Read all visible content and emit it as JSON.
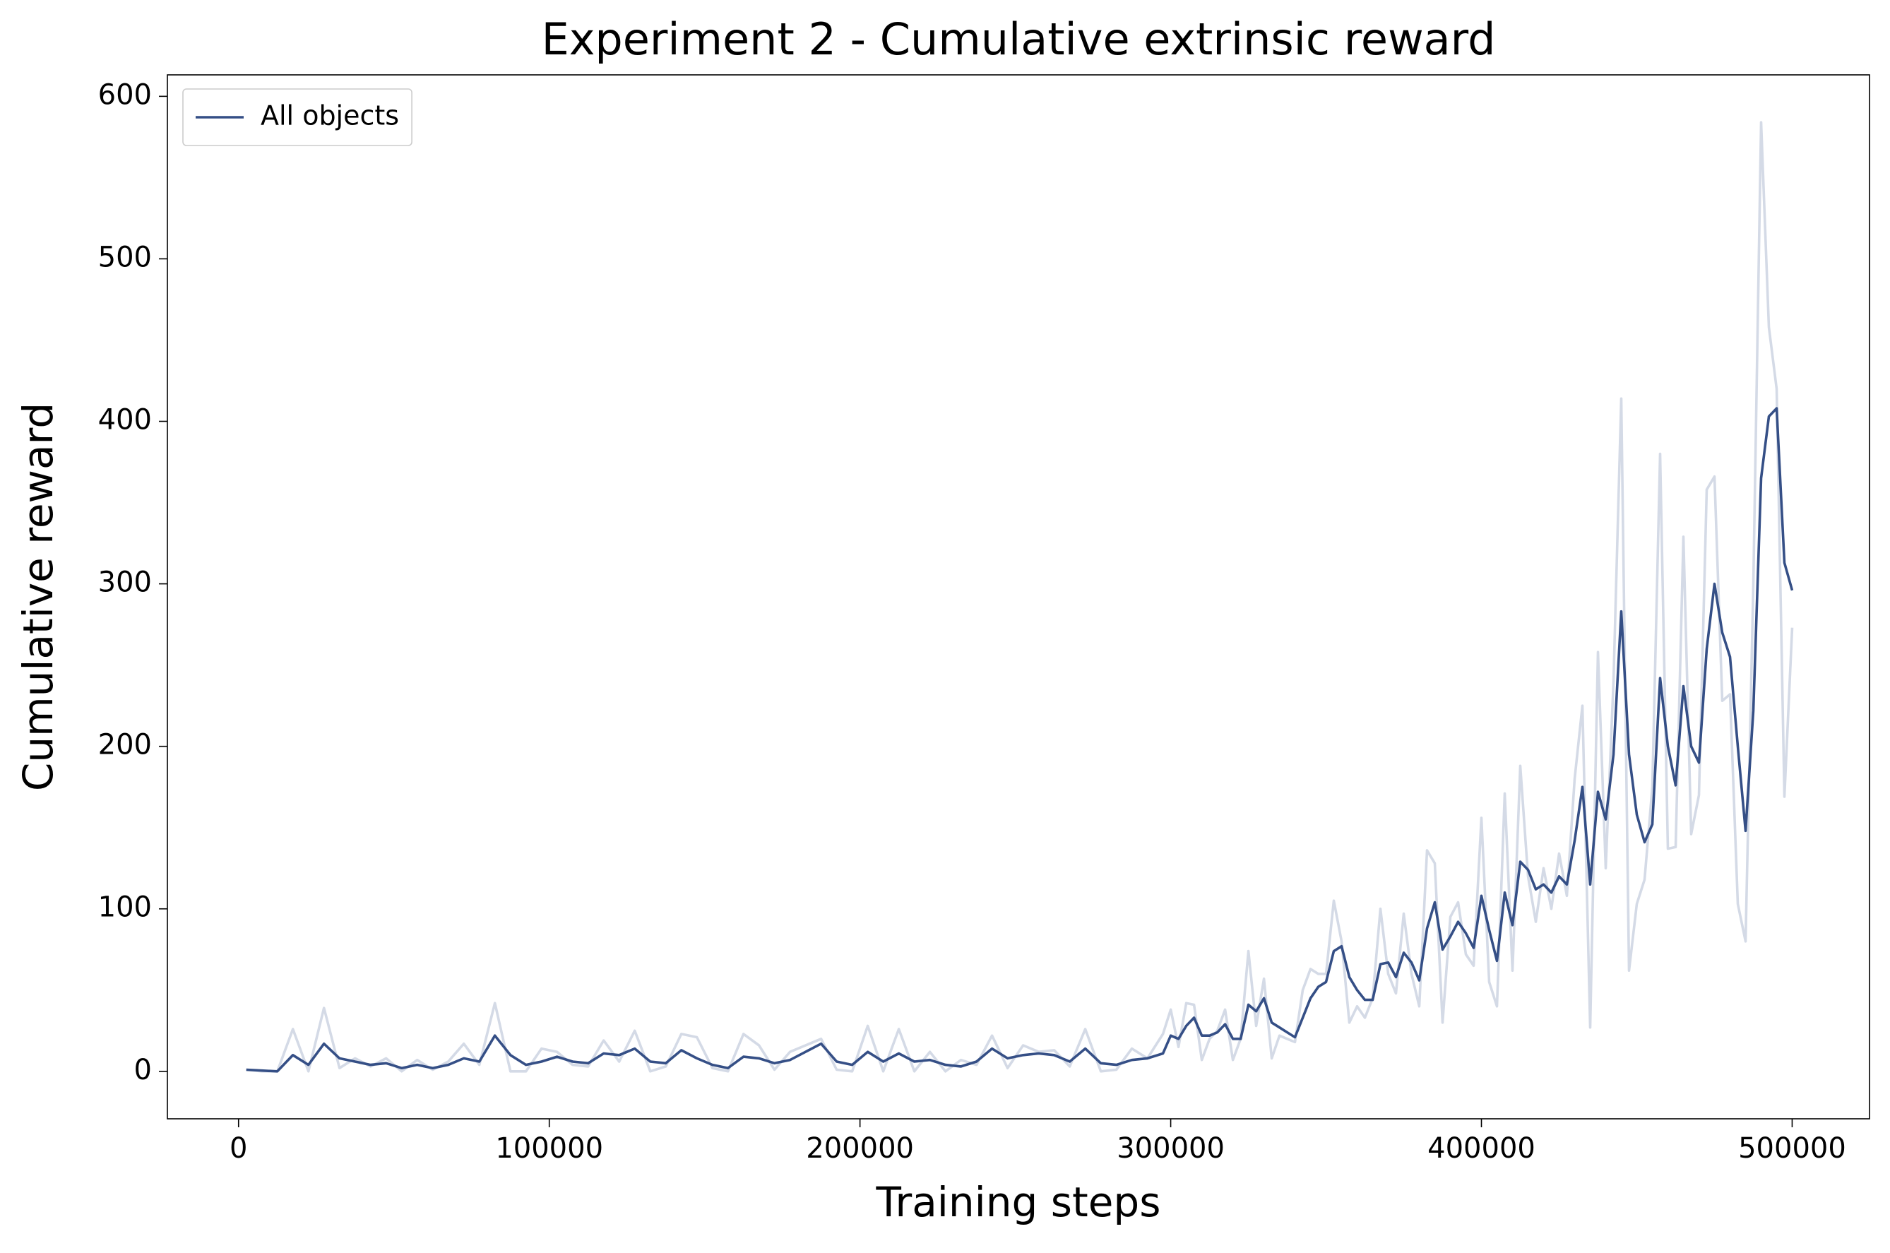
{
  "chart_data": {
    "type": "line",
    "title": "Experiment 2 - Cumulative extrinsic reward",
    "x_label": "Training steps",
    "y_label": "Cumulative reward",
    "legend": "upper left",
    "xlim": [
      -22900,
      524900
    ],
    "ylim": [
      -29.2,
      613.2
    ],
    "xticks": [
      0,
      100000,
      200000,
      300000,
      400000,
      500000
    ],
    "yticks": [
      0,
      100,
      200,
      300,
      400,
      500,
      600
    ],
    "x": [
      2500,
      7500,
      12500,
      17500,
      22500,
      27500,
      32500,
      37500,
      42500,
      47500,
      52500,
      57500,
      62500,
      67500,
      72500,
      77500,
      82500,
      87500,
      92500,
      97500,
      102500,
      107500,
      112500,
      117500,
      122500,
      127500,
      132500,
      137500,
      142500,
      147500,
      152500,
      157500,
      162500,
      167500,
      172500,
      177500,
      182500,
      187500,
      192500,
      197500,
      202500,
      207500,
      212500,
      217500,
      222500,
      227500,
      232500,
      237500,
      242500,
      247500,
      252500,
      257500,
      262500,
      267500,
      272500,
      277500,
      282500,
      287500,
      292500,
      297500,
      300000,
      302500,
      305000,
      307500,
      310000,
      312500,
      315000,
      317500,
      320000,
      322500,
      325000,
      327500,
      330000,
      332500,
      335000,
      337500,
      340000,
      342500,
      345000,
      347500,
      350000,
      352500,
      355000,
      357500,
      360000,
      362500,
      365000,
      367500,
      370000,
      372500,
      375000,
      377500,
      380000,
      382500,
      385000,
      387500,
      390000,
      392500,
      395000,
      397500,
      400000,
      402500,
      405000,
      407500,
      410000,
      412500,
      415000,
      417500,
      420000,
      422500,
      425000,
      427500,
      430000,
      432500,
      435000,
      437500,
      440000,
      442500,
      445000,
      447500,
      450000,
      452500,
      455000,
      457500,
      460000,
      462500,
      465000,
      467500,
      470000,
      472500,
      475000,
      477500,
      480000,
      482500,
      485000,
      487500,
      490000,
      492500,
      495000,
      497500,
      500000
    ],
    "series": [
      {
        "name": "All objects",
        "color": "#354f86",
        "values": [
          1,
          0.5,
          0,
          10,
          4,
          17,
          8,
          6,
          4,
          5,
          2,
          4,
          2,
          4,
          8,
          6,
          22,
          10,
          4,
          6,
          9,
          6,
          5,
          11,
          10,
          14,
          6,
          5,
          13,
          8,
          4,
          2,
          9,
          8,
          5,
          7,
          12,
          17,
          6,
          4,
          12,
          6,
          11,
          6,
          7,
          4,
          3,
          6,
          14,
          8,
          10,
          11,
          10,
          6,
          14,
          5,
          4,
          7,
          8,
          11,
          22,
          20,
          28,
          33,
          22,
          22,
          24,
          29,
          20,
          20,
          41,
          37,
          45,
          30,
          27,
          24,
          21,
          33,
          45,
          52,
          55,
          74,
          77,
          58,
          50,
          44,
          44,
          66,
          67,
          58,
          73,
          67,
          56,
          88,
          104,
          75,
          83,
          92,
          85,
          76,
          108,
          87,
          68,
          110,
          90,
          129,
          124,
          112,
          115,
          110,
          120,
          115,
          142,
          175,
          115,
          172,
          155,
          195,
          283,
          195,
          158,
          141,
          152,
          242,
          200,
          176,
          237,
          200,
          190,
          260,
          300,
          270,
          255,
          200,
          148,
          222,
          365,
          403,
          408,
          313,
          296
        ]
      },
      {
        "color": "#d4dae6",
        "values": [
          1,
          0,
          0,
          26,
          0,
          39,
          2,
          8,
          3,
          8,
          0,
          7,
          1,
          6,
          17,
          4,
          42,
          0,
          0,
          14,
          12,
          4,
          3,
          19,
          6,
          25,
          0,
          3,
          23,
          21,
          2,
          0,
          23,
          16,
          1,
          12,
          16,
          20,
          1,
          0,
          28,
          0,
          26,
          0,
          12,
          0,
          7,
          4,
          22,
          2,
          16,
          12,
          13,
          3,
          26,
          0,
          1,
          14,
          8,
          23,
          38,
          15,
          42,
          41,
          7,
          20,
          25,
          38,
          7,
          20,
          74,
          28,
          57,
          8,
          22,
          20,
          18,
          50,
          63,
          60,
          60,
          105,
          80,
          30,
          40,
          33,
          45,
          100,
          60,
          48,
          97,
          60,
          40,
          136,
          128,
          30,
          95,
          104,
          72,
          65,
          156,
          55,
          40,
          171,
          62,
          188,
          120,
          92,
          125,
          100,
          134,
          108,
          180,
          225,
          27,
          258,
          125,
          240,
          414,
          62,
          103,
          118,
          175,
          380,
          137,
          138,
          329,
          146,
          170,
          358,
          366,
          228,
          232,
          103,
          80,
          300,
          584,
          458,
          420,
          169,
          273
        ]
      }
    ]
  }
}
